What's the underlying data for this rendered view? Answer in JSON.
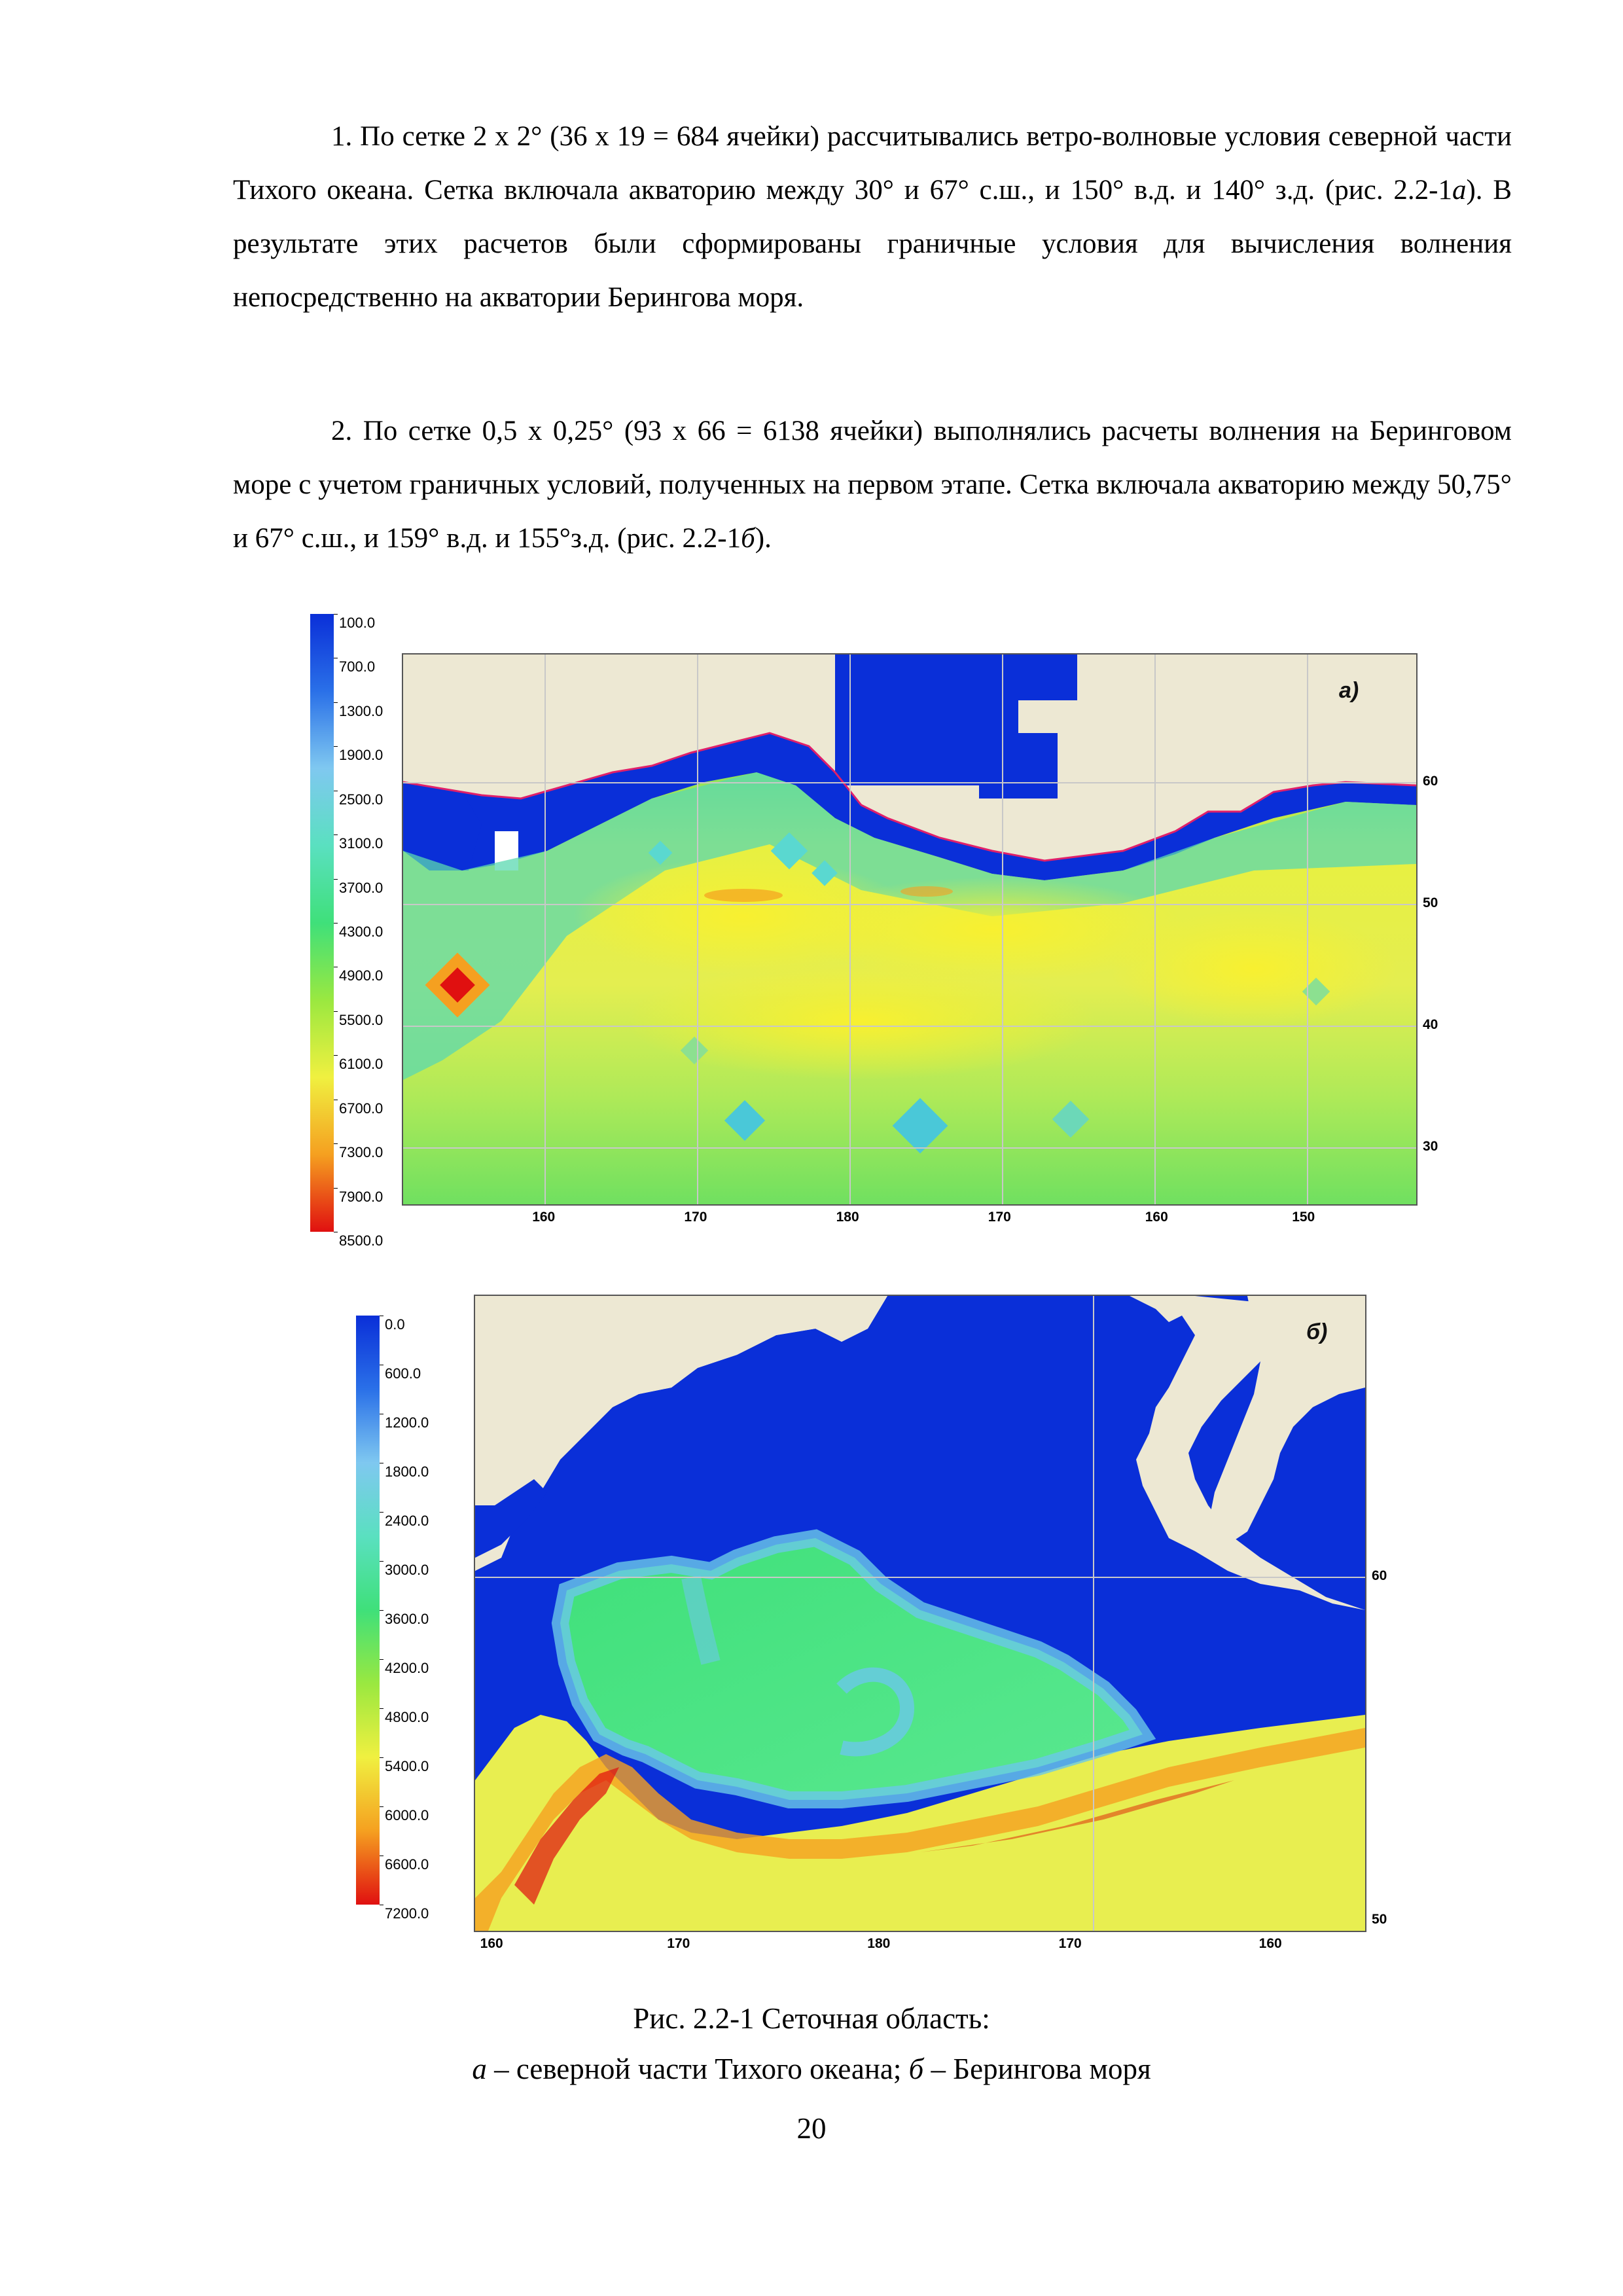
{
  "paragraphs": [
    {
      "runs": [
        {
          "t": "1. По сетке 2 х 2° (36 х 19 = 684 ячейки) рассчитывались ветро-волновые условия северной части Тихого океана. Сетка включала акваторию между 30° и 67° с.ш., и 150° в.д. и 140° з.д. (рис. 2.2-1",
          "i": false
        },
        {
          "t": "а",
          "i": true
        },
        {
          "t": "). В результате этих расчетов были сформированы граничные условия для вычисления волнения непосредственно на акватории Берингова моря.",
          "i": false
        }
      ]
    },
    {
      "runs": [
        {
          "t": "2. По сетке 0,5 х 0,25° (93 х 66 = 6138 ячейки) выполнялись расчеты волнения на Беринговом море с учетом граничных условий, полученных на первом этапе. Сетка включала акваторию между 50,75° и 67° с.ш., и 159° в.д. и 155°з.д. (рис. 2.2-1",
          "i": false
        },
        {
          "t": "б",
          "i": true
        },
        {
          "t": ").",
          "i": false
        }
      ]
    }
  ],
  "figure_a": {
    "letter": "а)",
    "scale_labels": [
      "100.0",
      "700.0",
      "1300.0",
      "1900.0",
      "2500.0",
      "3100.0",
      "3700.0",
      "4300.0",
      "4900.0",
      "5500.0",
      "6100.0",
      "6700.0",
      "7300.0",
      "7900.0",
      "8500.0"
    ],
    "lon_labels": [
      "160",
      "170",
      "180",
      "170",
      "160",
      "150"
    ],
    "lat_labels": [
      "60",
      "50",
      "40",
      "30"
    ]
  },
  "figure_b": {
    "letter": "б)",
    "scale_labels": [
      "0.0",
      "600.0",
      "1200.0",
      "1800.0",
      "2400.0",
      "3000.0",
      "3600.0",
      "4200.0",
      "4800.0",
      "5400.0",
      "6000.0",
      "6600.0",
      "7200.0"
    ],
    "lon_labels": [
      "160",
      "170",
      "180",
      "170",
      "160"
    ],
    "lat_labels": [
      "60",
      "50"
    ]
  },
  "caption": {
    "line1": "Рис. 2.2-1 Сеточная область:",
    "line2_runs": [
      {
        "t": "а",
        "i": true
      },
      {
        "t": " – северной части Тихого океана; ",
        "i": false
      },
      {
        "t": "б",
        "i": true
      },
      {
        "t": " – Берингова моря",
        "i": false
      }
    ]
  },
  "page_number": "20",
  "colors": {
    "deep_blue": "#0a2fd8",
    "light_blue": "#7fc8f0",
    "green": "#3fe07a",
    "yellow": "#f0f040",
    "orange": "#f5a020",
    "red": "#e01010",
    "land": "#ede8d3",
    "coast": "#e0206a"
  }
}
